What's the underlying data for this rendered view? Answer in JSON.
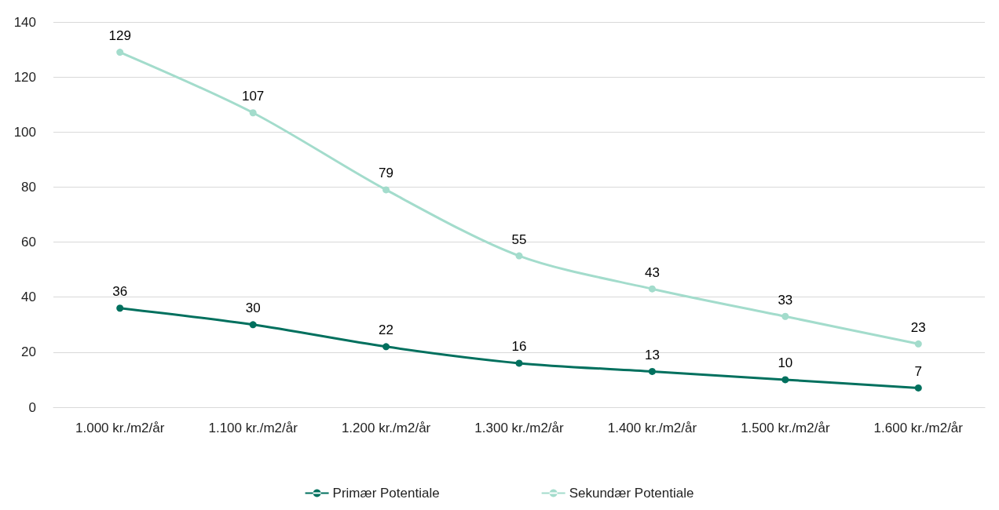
{
  "chart_data": {
    "type": "line",
    "categories": [
      "1.000 kr./m2/år",
      "1.100 kr./m2/år",
      "1.200 kr./m2/år",
      "1.300 kr./m2/år",
      "1.400 kr./m2/år",
      "1.500 kr./m2/år",
      "1.600 kr./m2/år"
    ],
    "series": [
      {
        "name": "Primær Potentiale",
        "color": "#00705e",
        "values": [
          36,
          30,
          22,
          16,
          13,
          10,
          7
        ]
      },
      {
        "name": "Sekundær Potentiale",
        "color": "#a3dccc",
        "values": [
          129,
          107,
          79,
          55,
          43,
          33,
          23
        ]
      }
    ],
    "ylim": [
      0,
      140
    ],
    "yticks": [
      0,
      20,
      40,
      60,
      80,
      100,
      120,
      140
    ],
    "grid": "y",
    "legend": "bottom",
    "marker": "circle",
    "line_style": "solid",
    "data_labels": true
  }
}
